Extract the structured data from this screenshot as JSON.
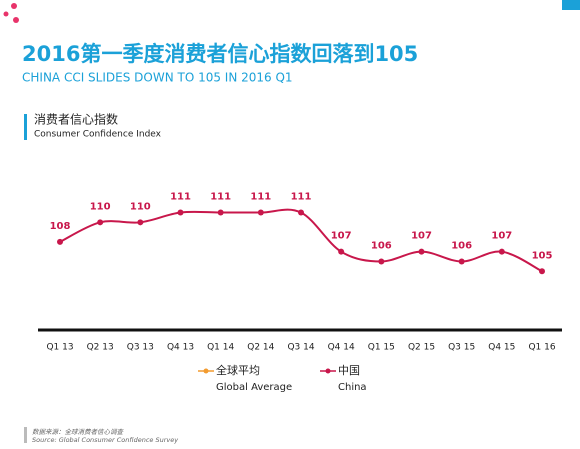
{
  "chart_data": {
    "type": "line",
    "title": "2016第一季度消费者信心指数回落到105",
    "subtitle": "CHINA CCI SLIDES DOWN TO 105 IN 2016 Q1",
    "chart_label": "消费者信心指数",
    "chart_label_en": "Consumer Confidence Index",
    "categories": [
      "Q1 13",
      "Q2 13",
      "Q3 13",
      "Q4 13",
      "Q1 14",
      "Q2 14",
      "Q3 14",
      "Q4 14",
      "Q1 15",
      "Q2 15",
      "Q3 15",
      "Q4 15",
      "Q1 16"
    ],
    "series": [
      {
        "name": "全球平均",
        "name_en": "Global Average",
        "color": "#f39b2f",
        "values": [
          null,
          null,
          null,
          null,
          null,
          null,
          null,
          null,
          null,
          null,
          null,
          null,
          null
        ]
      },
      {
        "name": "中国",
        "name_en": "China",
        "color": "#c8174b",
        "values": [
          108,
          110,
          110,
          111,
          111,
          111,
          111,
          107,
          106,
          107,
          106,
          107,
          105
        ]
      }
    ],
    "ylim": [
      99,
      118
    ],
    "source": "数据来源：全球消费者信心调查",
    "source_en": "Source: Global Consumer Confidence Survey"
  }
}
